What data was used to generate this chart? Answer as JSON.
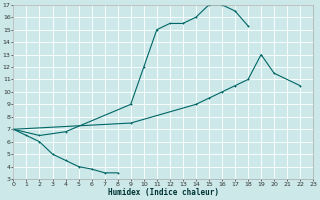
{
  "xlabel": "Humidex (Indice chaleur)",
  "bg_color": "#cce8e8",
  "grid_color": "#ffffff",
  "line_color": "#006666",
  "xlim": [
    0,
    23
  ],
  "ylim": [
    3,
    17
  ],
  "xticks": [
    0,
    1,
    2,
    3,
    4,
    5,
    6,
    7,
    8,
    9,
    10,
    11,
    12,
    13,
    14,
    15,
    16,
    17,
    18,
    19,
    20,
    21,
    22,
    23
  ],
  "yticks": [
    3,
    4,
    5,
    6,
    7,
    8,
    9,
    10,
    11,
    12,
    13,
    14,
    15,
    16,
    17
  ],
  "segments": {
    "curve1": [
      [
        0,
        7
      ],
      [
        1,
        6.5
      ],
      [
        2,
        6.0
      ],
      [
        3,
        5.0
      ],
      [
        4,
        4.5
      ],
      [
        5,
        4.0
      ],
      [
        6,
        3.8
      ],
      [
        7,
        3.5
      ],
      [
        8,
        3.5
      ]
    ],
    "curve2": [
      [
        0,
        7
      ],
      [
        2,
        6.5
      ],
      [
        4,
        6.8
      ],
      [
        9,
        9.0
      ],
      [
        10,
        12.0
      ],
      [
        11,
        15.0
      ],
      [
        12,
        15.5
      ],
      [
        13,
        15.5
      ],
      [
        14,
        16.0
      ],
      [
        15,
        17.0
      ],
      [
        16,
        17.0
      ],
      [
        17,
        16.5
      ],
      [
        18,
        15.3
      ]
    ],
    "curve3": [
      [
        0,
        7
      ],
      [
        9,
        7.5
      ],
      [
        14,
        9.0
      ],
      [
        15,
        9.5
      ],
      [
        16,
        10.0
      ],
      [
        17,
        10.5
      ],
      [
        18,
        11.0
      ],
      [
        19,
        13.0
      ],
      [
        20,
        11.5
      ],
      [
        22,
        10.5
      ]
    ]
  }
}
